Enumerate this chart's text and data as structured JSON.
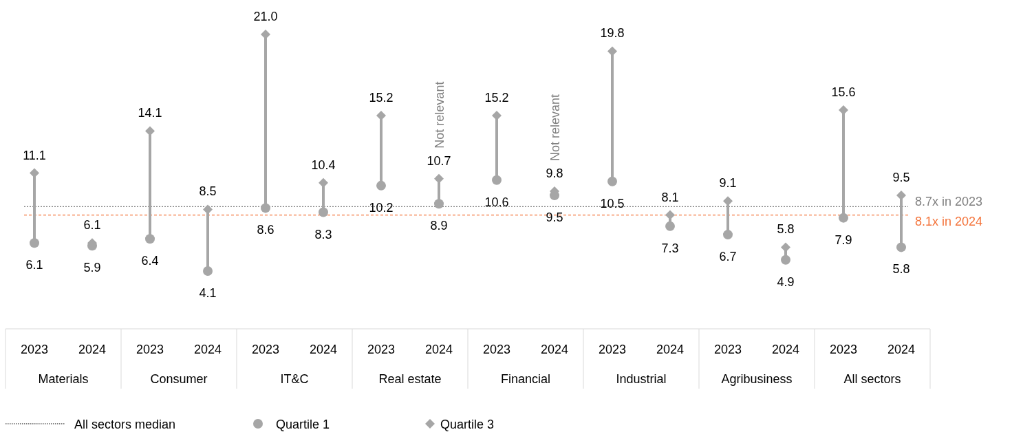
{
  "chart_data": {
    "type": "scatter",
    "categories": [
      "2023",
      "2024",
      "2023",
      "2024",
      "2023",
      "2024",
      "2023",
      "2024",
      "2023",
      "2024",
      "2023",
      "2024",
      "2023",
      "2024",
      "2023",
      "2024"
    ],
    "series": [
      {
        "name": "Quartile 1",
        "color": "#a6a6a6",
        "marker": "circle",
        "values": [
          6.1,
          5.9,
          6.4,
          4.1,
          8.6,
          8.3,
          10.2,
          8.9,
          10.6,
          9.5,
          10.5,
          7.3,
          6.7,
          4.9,
          7.9,
          5.8
        ],
        "value_labels": [
          "6.1",
          "5.9",
          "6.4",
          "4.1",
          "8.6",
          "8.3",
          "10.2",
          "8.9",
          "10.6",
          "9.5",
          "10.5",
          "7.3",
          "6.7",
          "4.9",
          "7.9",
          "5.8"
        ]
      },
      {
        "name": "Quartile 3",
        "color": "#a6a6a6",
        "marker": "diamond",
        "values": [
          11.1,
          6.1,
          14.1,
          8.5,
          21.0,
          10.4,
          15.2,
          10.7,
          15.2,
          9.8,
          19.8,
          8.1,
          9.1,
          5.8,
          15.6,
          9.5
        ],
        "value_labels": [
          "11.1",
          "6.1",
          "14.1",
          "8.5",
          "21.0",
          "10.4",
          "15.2",
          "10.7",
          "15.2",
          "9.8",
          "19.8",
          "8.1",
          "9.1",
          "5.8",
          "15.6",
          "9.5"
        ]
      }
    ],
    "tick_labels": "x",
    "legend": "bottom left",
    "ref_lines": [
      {
        "axis": "y",
        "value": 8.7,
        "label": "8.7x in 2023",
        "color": "#808080",
        "line_style": "dotted"
      },
      {
        "axis": "y",
        "value": 8.1,
        "label": "8.1x in 2024",
        "color": "#f4743b",
        "line_style": "dashed"
      }
    ],
    "annotations": [
      "All sectors median",
      "Materials",
      "Consumer",
      "IT&C",
      "Real estate",
      "Financial",
      "Industrial",
      "Agribusiness",
      "All sectors",
      "Not relevant",
      "Not relevant"
    ]
  }
}
